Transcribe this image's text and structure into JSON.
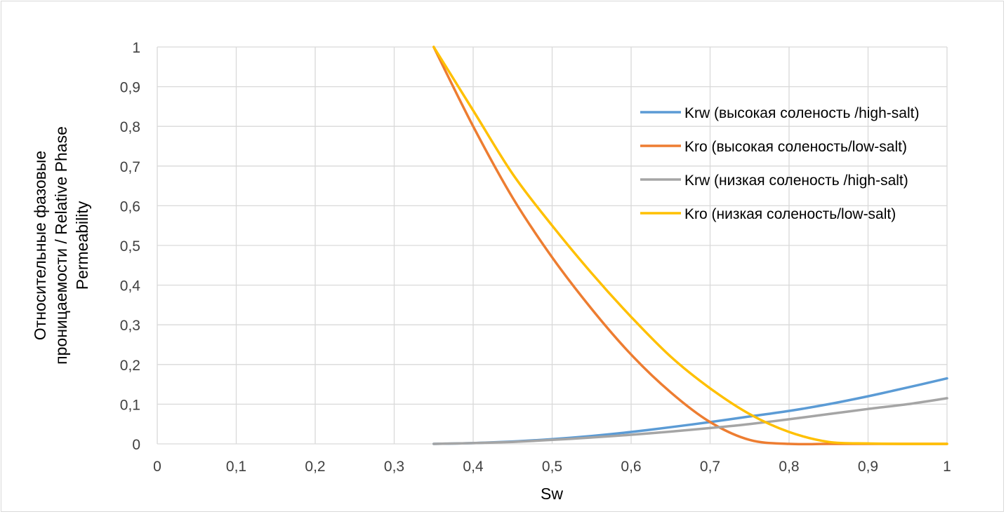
{
  "chart_data": {
    "type": "line",
    "xlabel": "Sw",
    "ylabel_lines": [
      "Относительные фазовые",
      "проницаемости / Relative Phase",
      "Permeability"
    ],
    "xlim": [
      0,
      1
    ],
    "ylim": [
      0,
      1
    ],
    "x_ticks": [
      "0",
      "0,1",
      "0,2",
      "0,3",
      "0,4",
      "0,5",
      "0,6",
      "0,7",
      "0,8",
      "0,9",
      "1"
    ],
    "y_ticks": [
      "0",
      "0,1",
      "0,2",
      "0,3",
      "0,4",
      "0,5",
      "0,6",
      "0,7",
      "0,8",
      "0,9",
      "1"
    ],
    "grid": true,
    "legend_position": "right",
    "series": [
      {
        "name": "Krw (высокая соленость /high-salt)",
        "color": "#5b9bd5",
        "x": [
          0.35,
          0.4,
          0.45,
          0.5,
          0.55,
          0.6,
          0.65,
          0.7,
          0.75,
          0.8,
          0.85,
          0.9,
          0.95,
          1.0
        ],
        "y": [
          0.0,
          0.002,
          0.006,
          0.012,
          0.02,
          0.03,
          0.042,
          0.055,
          0.069,
          0.083,
          0.1,
          0.12,
          0.142,
          0.165
        ]
      },
      {
        "name": "Kro (высокая соленость/low-salt)",
        "color": "#ed7d31",
        "x": [
          0.35,
          0.4,
          0.45,
          0.5,
          0.55,
          0.6,
          0.65,
          0.7,
          0.75,
          0.8,
          0.85,
          0.9,
          0.95,
          1.0
        ],
        "y": [
          1.0,
          0.8,
          0.62,
          0.47,
          0.34,
          0.225,
          0.13,
          0.055,
          0.01,
          0.0,
          0.0,
          0.0,
          0.0,
          0.0
        ]
      },
      {
        "name": "Krw (низкая соленость /high-salt)",
        "color": "#a5a5a5",
        "x": [
          0.35,
          0.4,
          0.45,
          0.5,
          0.55,
          0.6,
          0.65,
          0.7,
          0.75,
          0.8,
          0.85,
          0.9,
          0.95,
          1.0
        ],
        "y": [
          0.0,
          0.002,
          0.005,
          0.01,
          0.016,
          0.023,
          0.031,
          0.04,
          0.05,
          0.062,
          0.075,
          0.088,
          0.1,
          0.115
        ]
      },
      {
        "name": "Kro (низкая соленость/low-salt)",
        "color": "#ffc000",
        "x": [
          0.35,
          0.4,
          0.45,
          0.5,
          0.55,
          0.6,
          0.65,
          0.7,
          0.75,
          0.8,
          0.85,
          0.9,
          0.95,
          1.0
        ],
        "y": [
          1.0,
          0.84,
          0.68,
          0.55,
          0.43,
          0.32,
          0.22,
          0.14,
          0.075,
          0.03,
          0.005,
          0.001,
          0.0,
          0.0
        ]
      }
    ]
  }
}
